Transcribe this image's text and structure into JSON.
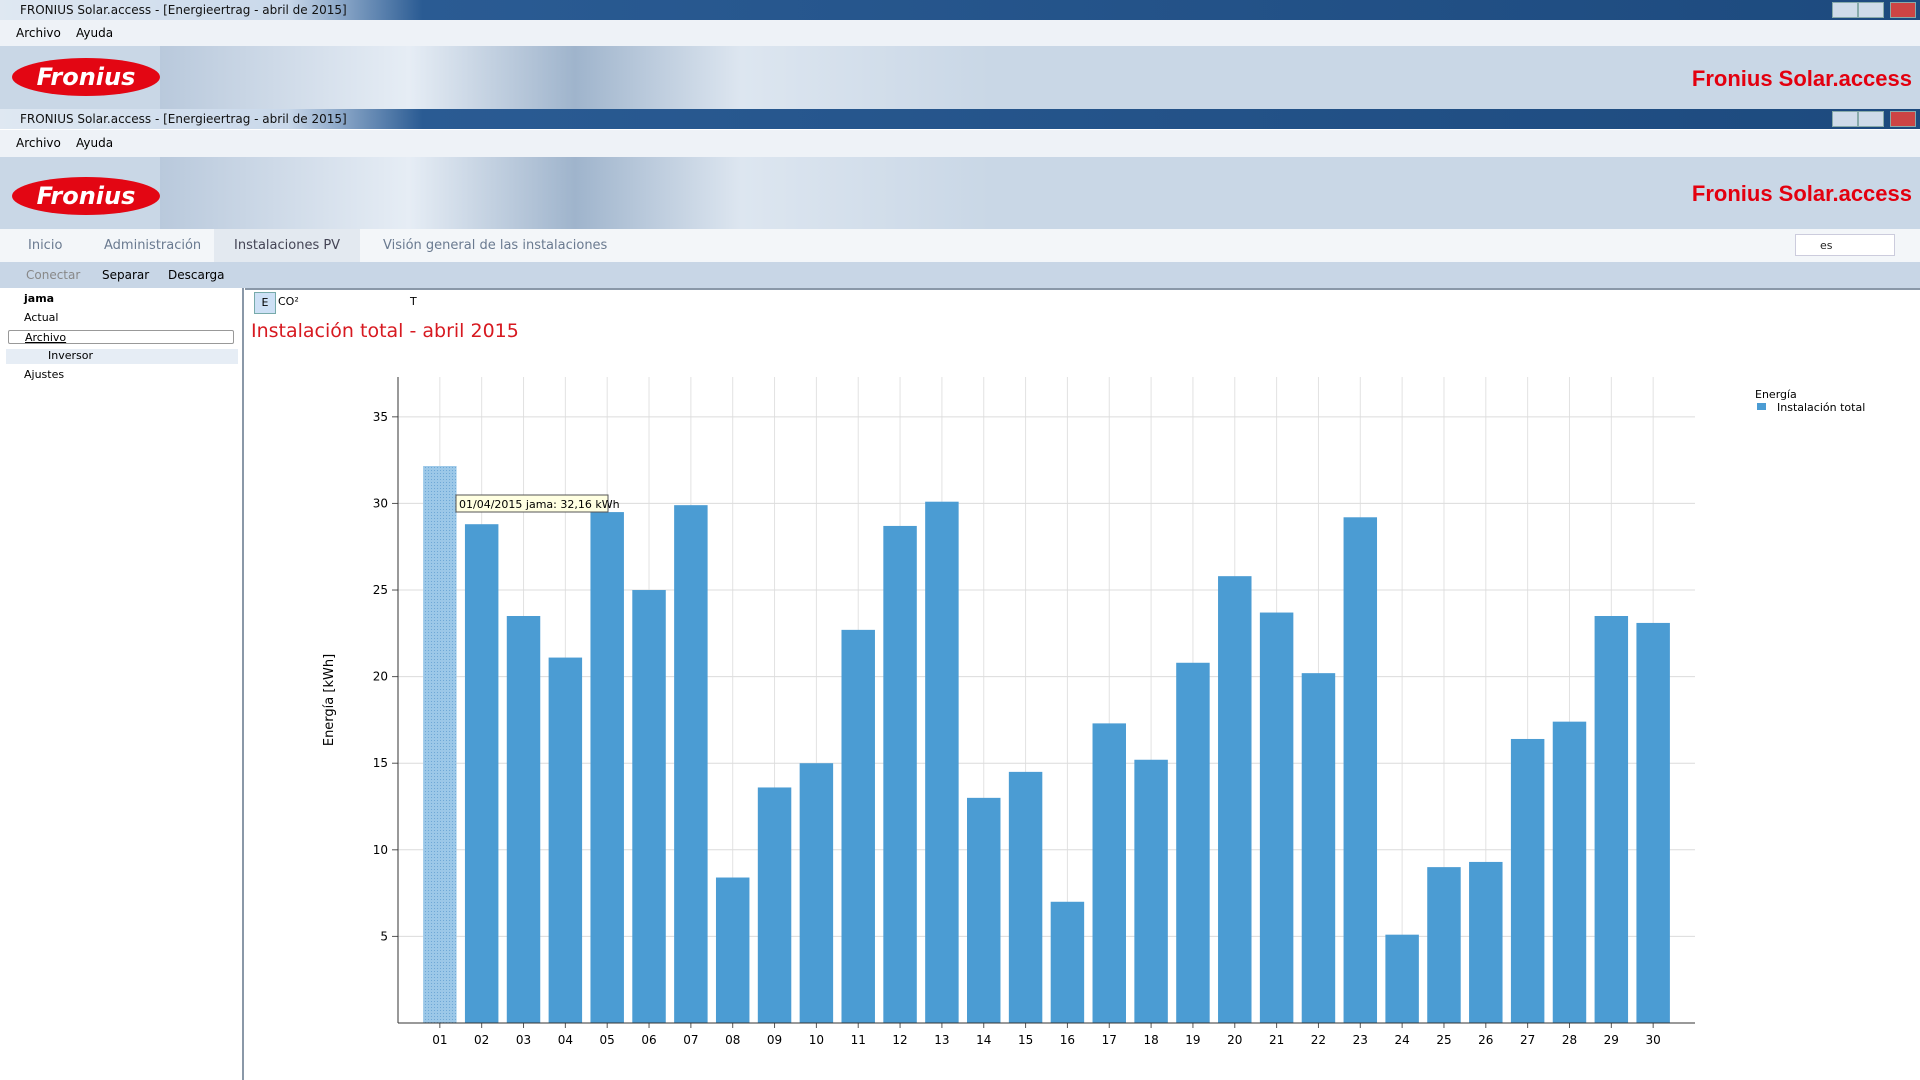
{
  "window": {
    "title": "FRONIUS Solar.access - [Energieertrag - abril de 2015]",
    "menu": [
      "Archivo",
      "Ayuda"
    ],
    "logo": "Fronius",
    "brand": "Fronius Solar.access"
  },
  "tabs": [
    "Inicio",
    "Administración",
    "Instalaciones PV",
    "Visión general de las instalaciones"
  ],
  "language": "es",
  "toolbar": [
    "Conectar",
    "Separar",
    "Descarga"
  ],
  "tree": [
    "jama",
    "Actual",
    "Archivo",
    "Inversor",
    "Ajustes"
  ],
  "chart_tools": [
    "E",
    "CO²",
    "T"
  ],
  "chart_data": {
    "type": "bar",
    "title": "Instalación total - abril 2015",
    "y_label": "Energía [kWh]",
    "legend_title": "Energía",
    "tooltip": "01/04/2015 jama: 32,16 kWh",
    "categories": [
      "01",
      "02",
      "03",
      "04",
      "05",
      "06",
      "07",
      "08",
      "09",
      "10",
      "11",
      "12",
      "13",
      "14",
      "15",
      "16",
      "17",
      "18",
      "19",
      "20",
      "21",
      "22",
      "23",
      "24",
      "25",
      "26",
      "27",
      "28",
      "29",
      "30"
    ],
    "series": [
      {
        "name": "Instalación total",
        "color": "#4b9cd3",
        "values": [
          32.16,
          28.8,
          23.5,
          21.1,
          29.5,
          25.0,
          29.9,
          8.4,
          13.6,
          15.0,
          22.7,
          28.7,
          30.1,
          13.0,
          14.5,
          7.0,
          17.3,
          15.2,
          20.8,
          25.8,
          23.7,
          20.2,
          29.2,
          5.1,
          9.0,
          9.3,
          16.4,
          17.4,
          23.5,
          23.1
        ]
      }
    ],
    "ylim": [
      0,
      37.3
    ],
    "yticks": [
      5,
      10,
      15,
      20,
      25,
      30,
      35
    ],
    "grid": true
  }
}
